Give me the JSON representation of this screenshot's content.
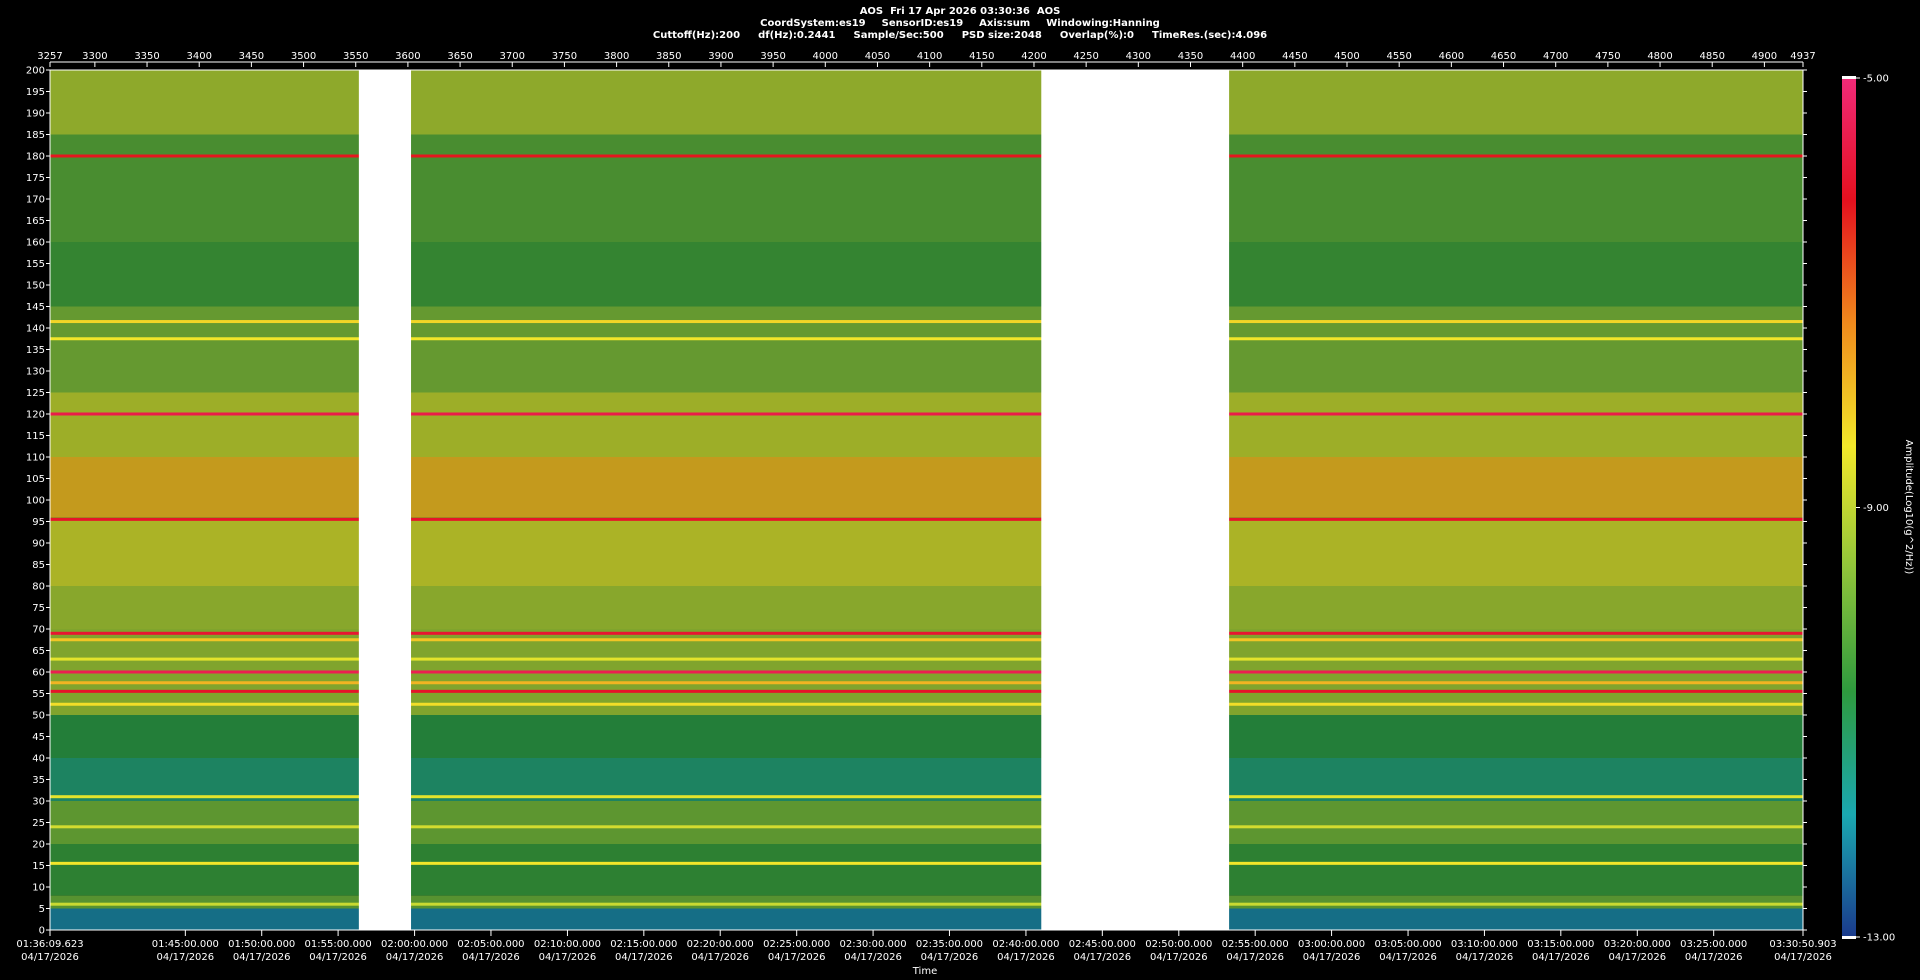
{
  "header": {
    "title": "AOS  Fri 17 Apr 2026 03:30:36  AOS",
    "line2": [
      "CoordSystem:es19",
      "SensorID:es19",
      "Axis:sum",
      "Windowing:Hanning"
    ],
    "line3": [
      "Cuttoff(Hz):200",
      "df(Hz):0.2441",
      "Sample/Sec:500",
      "PSD size:2048",
      "Overlap(%):0",
      "TimeRes.(sec):4.096"
    ]
  },
  "chart_data": {
    "type": "heatmap",
    "title": "AOS  Fri 17 Apr 2026 03:30:36  AOS",
    "xlabel": "Time",
    "ylabel": "",
    "colorbar_label": "Amplitude(Log10(g^2/Hz))",
    "colorbar_range": [
      -13.0,
      -5.0
    ],
    "colorbar_ticks": [
      "-5.00",
      "-9.00",
      "-13.00"
    ],
    "colorscale": [
      "#1a3a8c",
      "#1aa8b0",
      "#2e9a3e",
      "#8fc43a",
      "#f2e82a",
      "#f08a1c",
      "#e4101e",
      "#f02a78"
    ],
    "ylim": [
      0,
      200
    ],
    "y_ticks": [
      200,
      195,
      190,
      185,
      180,
      175,
      170,
      165,
      160,
      155,
      150,
      145,
      140,
      135,
      130,
      125,
      120,
      115,
      110,
      105,
      100,
      95,
      90,
      85,
      80,
      75,
      70,
      65,
      60,
      55,
      50,
      45,
      40,
      35,
      30,
      25,
      20,
      15,
      10,
      5,
      0
    ],
    "top_axis_range": [
      3257,
      4937
    ],
    "top_ticks": [
      "3257",
      "3300",
      "3350",
      "3400",
      "3450",
      "3500",
      "3550",
      "3600",
      "3650",
      "3700",
      "3750",
      "3800",
      "3850",
      "3900",
      "3950",
      "4000",
      "4050",
      "4100",
      "4150",
      "4200",
      "4250",
      "4300",
      "4350",
      "4400",
      "4450",
      "4500",
      "4550",
      "4600",
      "4650",
      "4700",
      "4750",
      "4800",
      "4850",
      "4900",
      "4937"
    ],
    "top_tick_values": [
      3257,
      3300,
      3350,
      3400,
      3450,
      3500,
      3550,
      3600,
      3650,
      3700,
      3750,
      3800,
      3850,
      3900,
      3950,
      4000,
      4050,
      4100,
      4150,
      4200,
      4250,
      4300,
      4350,
      4400,
      4450,
      4500,
      4550,
      4600,
      4650,
      4700,
      4750,
      4800,
      4850,
      4900,
      4937
    ],
    "time_ticks": [
      {
        "time": "01:36:09.623",
        "date": "04/17/2026",
        "v": 3257
      },
      {
        "time": "01:45:00.000",
        "date": "04/17/2026",
        "v": 3386.7
      },
      {
        "time": "01:50:00.000",
        "date": "04/17/2026",
        "v": 3459.9
      },
      {
        "time": "01:55:00.000",
        "date": "04/17/2026",
        "v": 3533.1
      },
      {
        "time": "02:00:00.000",
        "date": "04/17/2026",
        "v": 3606.4
      },
      {
        "time": "02:05:00.000",
        "date": "04/17/2026",
        "v": 3679.6
      },
      {
        "time": "02:10:00.000",
        "date": "04/17/2026",
        "v": 3752.9
      },
      {
        "time": "02:15:00.000",
        "date": "04/17/2026",
        "v": 3826.1
      },
      {
        "time": "02:20:00.000",
        "date": "04/17/2026",
        "v": 3899.3
      },
      {
        "time": "02:25:00.000",
        "date": "04/17/2026",
        "v": 3972.6
      },
      {
        "time": "02:30:00.000",
        "date": "04/17/2026",
        "v": 4045.8
      },
      {
        "time": "02:35:00.000",
        "date": "04/17/2026",
        "v": 4119.0
      },
      {
        "time": "02:40:00.000",
        "date": "04/17/2026",
        "v": 4192.3
      },
      {
        "time": "02:45:00.000",
        "date": "04/17/2026",
        "v": 4265.5
      },
      {
        "time": "02:50:00.000",
        "date": "04/17/2026",
        "v": 4338.8
      },
      {
        "time": "02:55:00.000",
        "date": "04/17/2026",
        "v": 4412.0
      },
      {
        "time": "03:00:00.000",
        "date": "04/17/2026",
        "v": 4485.2
      },
      {
        "time": "03:05:00.000",
        "date": "04/17/2026",
        "v": 4558.5
      },
      {
        "time": "03:10:00.000",
        "date": "04/17/2026",
        "v": 4631.7
      },
      {
        "time": "03:15:00.000",
        "date": "04/17/2026",
        "v": 4704.9
      },
      {
        "time": "03:20:00.000",
        "date": "04/17/2026",
        "v": 4778.2
      },
      {
        "time": "03:25:00.000",
        "date": "04/17/2026",
        "v": 4851.4
      },
      {
        "time": "03:30:50.903",
        "date": "04/17/2026",
        "v": 4937
      }
    ],
    "data_gaps": [
      [
        3553,
        3603
      ],
      [
        4207,
        4387
      ]
    ],
    "frequency_bands": [
      {
        "ylo": 185,
        "yhi": 200,
        "level": -9.2
      },
      {
        "ylo": 160,
        "yhi": 185,
        "level": -10.2
      },
      {
        "ylo": 145,
        "yhi": 160,
        "level": -10.5
      },
      {
        "ylo": 125,
        "yhi": 145,
        "level": -9.8
      },
      {
        "ylo": 110,
        "yhi": 125,
        "level": -9.0
      },
      {
        "ylo": 96,
        "yhi": 110,
        "level": -7.9
      },
      {
        "ylo": 80,
        "yhi": 96,
        "level": -8.8
      },
      {
        "ylo": 70,
        "yhi": 80,
        "level": -9.3
      },
      {
        "ylo": 50,
        "yhi": 70,
        "level": -9.4
      },
      {
        "ylo": 40,
        "yhi": 50,
        "level": -10.8
      },
      {
        "ylo": 30,
        "yhi": 40,
        "level": -11.3
      },
      {
        "ylo": 20,
        "yhi": 30,
        "level": -9.9
      },
      {
        "ylo": 8,
        "yhi": 20,
        "level": -10.6
      },
      {
        "ylo": 5,
        "yhi": 8,
        "level": -10.0
      },
      {
        "ylo": 0,
        "yhi": 5,
        "level": -12.2
      }
    ],
    "tonal_lines": [
      {
        "freq": 180,
        "level": -6.2
      },
      {
        "freq": 141.5,
        "level": -8.2
      },
      {
        "freq": 137.5,
        "level": -8.4
      },
      {
        "freq": 120,
        "level": -5.6
      },
      {
        "freq": 95.5,
        "level": -6.0
      },
      {
        "freq": 69,
        "level": -5.9
      },
      {
        "freq": 67.5,
        "level": -8.0
      },
      {
        "freq": 63,
        "level": -8.6
      },
      {
        "freq": 60,
        "level": -5.5
      },
      {
        "freq": 57.5,
        "level": -7.8
      },
      {
        "freq": 55.5,
        "level": -6.0
      },
      {
        "freq": 52.5,
        "level": -8.3
      },
      {
        "freq": 31,
        "level": -8.6
      },
      {
        "freq": 24,
        "level": -8.8
      },
      {
        "freq": 15.5,
        "level": -8.4
      },
      {
        "freq": 6,
        "level": -8.9
      }
    ]
  }
}
